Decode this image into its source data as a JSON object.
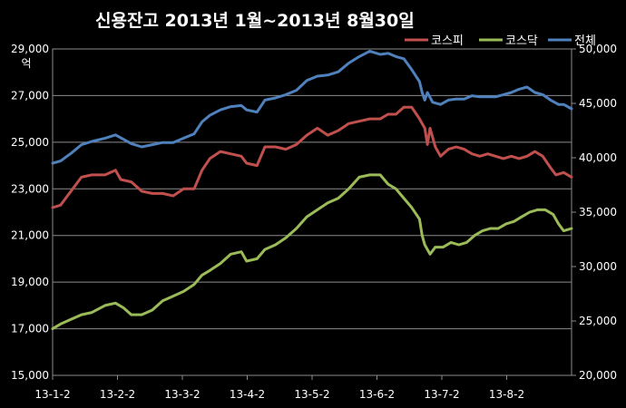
{
  "chart_data": {
    "type": "line",
    "title": "신용잔고 2013년 1월~2013년 8월30일",
    "left_unit": "억",
    "left_ylim": [
      15000,
      29000
    ],
    "left_ticks": [
      "15,000",
      "17,000",
      "19,000",
      "21,000",
      "23,000",
      "25,000",
      "27,000",
      "29,000"
    ],
    "right_ylim": [
      20000,
      50000
    ],
    "right_ticks": [
      "20,000",
      "25,000",
      "30,000",
      "35,000",
      "40,000",
      "45,000",
      "50,000"
    ],
    "x_ticks": [
      "13-1-2",
      "13-2-2",
      "13-3-2",
      "13-4-2",
      "13-5-2",
      "13-6-2",
      "13-7-2",
      "13-8-2"
    ],
    "grid": true,
    "legend_position": "top-right",
    "series": [
      {
        "name": "코스피",
        "axis": "left",
        "color": "#c0504d",
        "values": [
          [
            0,
            22200
          ],
          [
            3,
            22300
          ],
          [
            7,
            22900
          ],
          [
            11,
            23500
          ],
          [
            15,
            23600
          ],
          [
            20,
            23600
          ],
          [
            24,
            23800
          ],
          [
            26,
            23400
          ],
          [
            30,
            23300
          ],
          [
            34,
            22900
          ],
          [
            38,
            22800
          ],
          [
            42,
            22800
          ],
          [
            46,
            22700
          ],
          [
            50,
            23000
          ],
          [
            54,
            23000
          ],
          [
            57,
            23800
          ],
          [
            60,
            24300
          ],
          [
            64,
            24600
          ],
          [
            68,
            24500
          ],
          [
            72,
            24400
          ],
          [
            74,
            24100
          ],
          [
            78,
            24000
          ],
          [
            81,
            24800
          ],
          [
            85,
            24800
          ],
          [
            89,
            24700
          ],
          [
            93,
            24900
          ],
          [
            97,
            25300
          ],
          [
            101,
            25600
          ],
          [
            105,
            25300
          ],
          [
            109,
            25500
          ],
          [
            113,
            25800
          ],
          [
            117,
            25900
          ],
          [
            121,
            26000
          ],
          [
            125,
            26000
          ],
          [
            128,
            26200
          ],
          [
            131,
            26200
          ],
          [
            134,
            26500
          ],
          [
            137,
            26500
          ],
          [
            140,
            26000
          ],
          [
            142,
            25600
          ],
          [
            143,
            24900
          ],
          [
            144,
            25600
          ],
          [
            146,
            24800
          ],
          [
            148,
            24400
          ],
          [
            151,
            24700
          ],
          [
            154,
            24800
          ],
          [
            157,
            24700
          ],
          [
            160,
            24500
          ],
          [
            163,
            24400
          ],
          [
            166,
            24500
          ],
          [
            169,
            24400
          ],
          [
            172,
            24300
          ],
          [
            175,
            24400
          ],
          [
            178,
            24300
          ],
          [
            181,
            24400
          ],
          [
            184,
            24600
          ],
          [
            187,
            24400
          ],
          [
            190,
            23900
          ],
          [
            192,
            23600
          ],
          [
            195,
            23700
          ],
          [
            198,
            23500
          ]
        ]
      },
      {
        "name": "코스닥",
        "axis": "left",
        "color": "#9bbb59",
        "values": [
          [
            0,
            17000
          ],
          [
            3,
            17200
          ],
          [
            7,
            17400
          ],
          [
            11,
            17600
          ],
          [
            15,
            17700
          ],
          [
            20,
            18000
          ],
          [
            24,
            18100
          ],
          [
            27,
            17900
          ],
          [
            30,
            17600
          ],
          [
            34,
            17600
          ],
          [
            38,
            17800
          ],
          [
            42,
            18200
          ],
          [
            46,
            18400
          ],
          [
            50,
            18600
          ],
          [
            54,
            18900
          ],
          [
            57,
            19300
          ],
          [
            60,
            19500
          ],
          [
            64,
            19800
          ],
          [
            68,
            20200
          ],
          [
            72,
            20300
          ],
          [
            74,
            19900
          ],
          [
            78,
            20000
          ],
          [
            81,
            20400
          ],
          [
            85,
            20600
          ],
          [
            89,
            20900
          ],
          [
            93,
            21300
          ],
          [
            97,
            21800
          ],
          [
            101,
            22100
          ],
          [
            105,
            22400
          ],
          [
            109,
            22600
          ],
          [
            113,
            23000
          ],
          [
            117,
            23500
          ],
          [
            121,
            23600
          ],
          [
            125,
            23600
          ],
          [
            128,
            23200
          ],
          [
            131,
            23000
          ],
          [
            134,
            22600
          ],
          [
            137,
            22200
          ],
          [
            140,
            21700
          ],
          [
            141,
            21000
          ],
          [
            142,
            20600
          ],
          [
            144,
            20200
          ],
          [
            146,
            20500
          ],
          [
            149,
            20500
          ],
          [
            152,
            20700
          ],
          [
            155,
            20600
          ],
          [
            158,
            20700
          ],
          [
            161,
            21000
          ],
          [
            164,
            21200
          ],
          [
            167,
            21300
          ],
          [
            170,
            21300
          ],
          [
            173,
            21500
          ],
          [
            176,
            21600
          ],
          [
            179,
            21800
          ],
          [
            182,
            22000
          ],
          [
            185,
            22100
          ],
          [
            188,
            22100
          ],
          [
            191,
            21900
          ],
          [
            193,
            21500
          ],
          [
            195,
            21200
          ],
          [
            198,
            21300
          ]
        ]
      },
      {
        "name": "전체",
        "axis": "right",
        "color": "#4f81bd",
        "values": [
          [
            0,
            39500
          ],
          [
            3,
            39700
          ],
          [
            7,
            40400
          ],
          [
            11,
            41200
          ],
          [
            15,
            41500
          ],
          [
            20,
            41800
          ],
          [
            24,
            42100
          ],
          [
            27,
            41700
          ],
          [
            30,
            41300
          ],
          [
            34,
            41000
          ],
          [
            38,
            41200
          ],
          [
            42,
            41400
          ],
          [
            46,
            41400
          ],
          [
            50,
            41800
          ],
          [
            54,
            42200
          ],
          [
            57,
            43300
          ],
          [
            60,
            43900
          ],
          [
            64,
            44400
          ],
          [
            68,
            44700
          ],
          [
            72,
            44800
          ],
          [
            74,
            44400
          ],
          [
            78,
            44200
          ],
          [
            81,
            45300
          ],
          [
            85,
            45500
          ],
          [
            89,
            45800
          ],
          [
            93,
            46200
          ],
          [
            97,
            47100
          ],
          [
            101,
            47500
          ],
          [
            105,
            47600
          ],
          [
            109,
            47900
          ],
          [
            113,
            48700
          ],
          [
            117,
            49300
          ],
          [
            121,
            49800
          ],
          [
            125,
            49500
          ],
          [
            128,
            49600
          ],
          [
            131,
            49300
          ],
          [
            134,
            49100
          ],
          [
            137,
            48100
          ],
          [
            140,
            47000
          ],
          [
            141,
            46000
          ],
          [
            142,
            45300
          ],
          [
            143,
            46000
          ],
          [
            145,
            45100
          ],
          [
            148,
            44900
          ],
          [
            151,
            45300
          ],
          [
            154,
            45400
          ],
          [
            157,
            45400
          ],
          [
            160,
            45700
          ],
          [
            163,
            45600
          ],
          [
            166,
            45600
          ],
          [
            169,
            45600
          ],
          [
            172,
            45800
          ],
          [
            175,
            46000
          ],
          [
            178,
            46300
          ],
          [
            181,
            46500
          ],
          [
            184,
            46000
          ],
          [
            187,
            45800
          ],
          [
            190,
            45300
          ],
          [
            193,
            44900
          ],
          [
            195,
            44900
          ],
          [
            198,
            44500
          ]
        ]
      }
    ]
  }
}
